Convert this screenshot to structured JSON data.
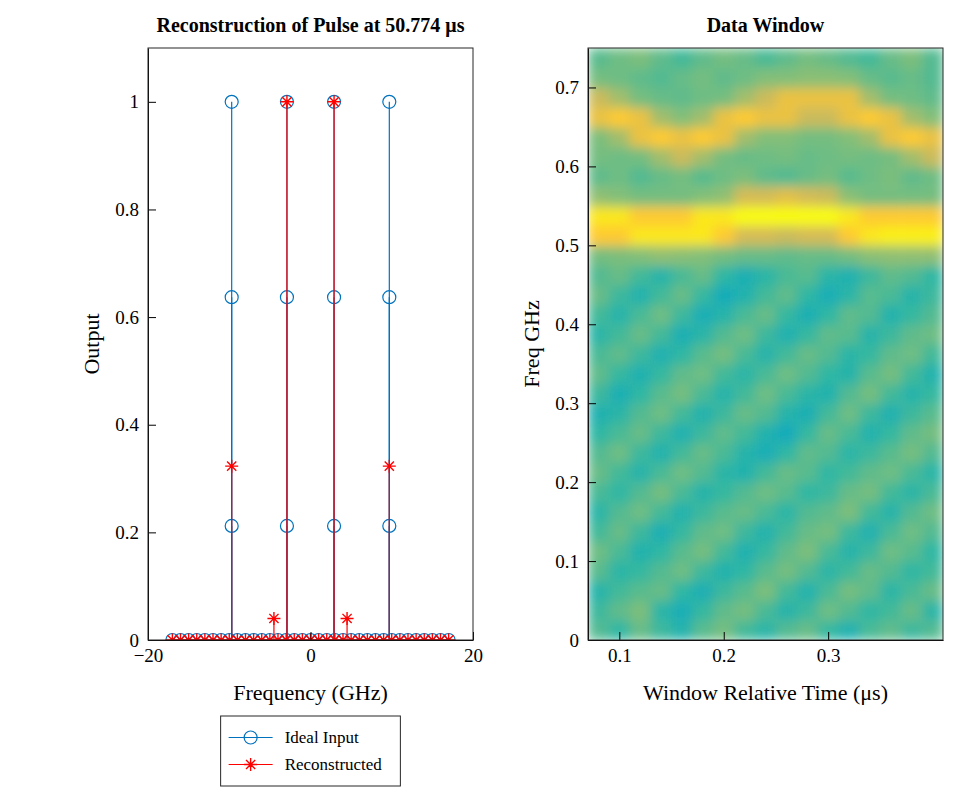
{
  "chart_data": [
    {
      "type": "stem",
      "title": "Reconstruction of Pulse at 50.774 μs",
      "x_label": "Frequency (GHz)",
      "y_label": "Output",
      "xlim": [
        -20,
        20
      ],
      "ylim": [
        0,
        1.1
      ],
      "xticks": [
        {
          "value": -20,
          "label": "−20"
        },
        0,
        20
      ],
      "yticks": [
        0,
        0.2,
        0.4,
        0.6,
        0.8,
        1
      ],
      "legend": "bottom",
      "series": [
        {
          "name": "Ideal Input",
          "color": "#0072bd",
          "marker": "circle",
          "x": [
            -17,
            -16,
            -15,
            -14,
            -13,
            -12,
            -11,
            -10,
            -9,
            -8,
            -7,
            -6,
            -5,
            -4,
            -3,
            -2,
            -1,
            0,
            1,
            2,
            3,
            4,
            5,
            6,
            7,
            8,
            9,
            10,
            11,
            12,
            13,
            14,
            15,
            16,
            17,
            -9.7,
            -9.7,
            -9.7,
            -2.9,
            -2.9,
            -2.9,
            2.9,
            2.9,
            2.9,
            9.7,
            9.7,
            9.7
          ],
          "values": [
            0,
            0,
            0,
            0,
            0,
            0,
            0,
            0,
            0,
            0,
            0,
            0,
            0,
            0,
            0,
            0,
            0,
            0,
            0,
            0,
            0,
            0,
            0,
            0,
            0,
            0,
            0,
            0,
            0,
            0,
            0,
            0,
            0,
            0,
            0,
            1,
            0.637,
            0.212,
            1,
            0.637,
            0.212,
            1,
            0.637,
            0.212,
            1,
            0.637,
            0.212
          ]
        },
        {
          "name": "Reconstructed",
          "color": "#ff0000",
          "marker": "asterisk",
          "x": [
            -17,
            -16,
            -15,
            -14,
            -13,
            -12,
            -11,
            -10,
            -9,
            -8,
            -7,
            -6,
            -5,
            -4,
            -3,
            -2,
            -1,
            0,
            1,
            2,
            3,
            4,
            5,
            6,
            7,
            8,
            9,
            10,
            11,
            12,
            13,
            14,
            15,
            16,
            17,
            -9.7,
            -4.5,
            -2.9,
            2.9,
            4.5,
            9.7
          ],
          "values": [
            0,
            0,
            0,
            0,
            0,
            0,
            0,
            0,
            0,
            0,
            0,
            0,
            0,
            0,
            0,
            0,
            0,
            0,
            0,
            0,
            0,
            0,
            0,
            0,
            0,
            0,
            0,
            0,
            0,
            0,
            0,
            0,
            0,
            0,
            0,
            0.323,
            0.04,
            1,
            1,
            0.04,
            0.323
          ]
        }
      ]
    },
    {
      "type": "heatmap",
      "title": "Data Window",
      "x_label": "Window Relative Time (μs)",
      "y_label": "Freq GHz",
      "xlim": [
        0.07,
        0.41
      ],
      "ylim": [
        0,
        0.75
      ],
      "xticks": [
        0.1,
        0.2,
        0.3
      ],
      "yticks": [
        0,
        0.1,
        0.2,
        0.3,
        0.4,
        0.5,
        0.6,
        0.7
      ],
      "zlim": [
        0,
        1
      ],
      "x": [
        0.08,
        0.1,
        0.12,
        0.14,
        0.16,
        0.18,
        0.2,
        0.22,
        0.24,
        0.26,
        0.28,
        0.3,
        0.32,
        0.34,
        0.36,
        0.38,
        0.4
      ],
      "y": [
        0.0125,
        0.0375,
        0.0625,
        0.0875,
        0.1125,
        0.1375,
        0.1625,
        0.1875,
        0.2125,
        0.2375,
        0.2625,
        0.2875,
        0.3125,
        0.3375,
        0.3625,
        0.3875,
        0.4125,
        0.4375,
        0.4625,
        0.4875,
        0.5125,
        0.5375,
        0.5625,
        0.5875,
        0.6125,
        0.6375,
        0.6625,
        0.6875,
        0.7125,
        0.7375
      ],
      "z": [
        [
          0.55,
          0.5,
          0.58,
          0.52,
          0.47,
          0.56,
          0.6,
          0.53,
          0.49,
          0.55,
          0.58,
          0.51,
          0.46,
          0.54,
          0.57,
          0.52,
          0.55
        ],
        [
          0.52,
          0.57,
          0.61,
          0.49,
          0.44,
          0.51,
          0.57,
          0.6,
          0.54,
          0.48,
          0.52,
          0.59,
          0.55,
          0.5,
          0.53,
          0.58,
          0.49
        ],
        [
          0.48,
          0.53,
          0.56,
          0.58,
          0.5,
          0.45,
          0.52,
          0.56,
          0.61,
          0.53,
          0.47,
          0.54,
          0.6,
          0.57,
          0.49,
          0.54,
          0.58
        ],
        [
          0.56,
          0.49,
          0.51,
          0.55,
          0.59,
          0.52,
          0.47,
          0.5,
          0.56,
          0.6,
          0.55,
          0.49,
          0.53,
          0.58,
          0.55,
          0.5,
          0.53
        ],
        [
          0.59,
          0.54,
          0.47,
          0.5,
          0.56,
          0.6,
          0.53,
          0.46,
          0.51,
          0.57,
          0.61,
          0.54,
          0.48,
          0.52,
          0.59,
          0.56,
          0.5
        ],
        [
          0.53,
          0.58,
          0.52,
          0.45,
          0.51,
          0.57,
          0.59,
          0.52,
          0.47,
          0.53,
          0.58,
          0.6,
          0.52,
          0.46,
          0.54,
          0.59,
          0.55
        ],
        [
          0.49,
          0.55,
          0.59,
          0.53,
          0.47,
          0.52,
          0.56,
          0.58,
          0.54,
          0.49,
          0.55,
          0.57,
          0.61,
          0.53,
          0.48,
          0.55,
          0.59
        ],
        [
          0.54,
          0.5,
          0.55,
          0.6,
          0.54,
          0.48,
          0.51,
          0.55,
          0.59,
          0.56,
          0.5,
          0.52,
          0.58,
          0.6,
          0.53,
          0.49,
          0.54
        ],
        [
          0.58,
          0.53,
          0.48,
          0.54,
          0.59,
          0.55,
          0.49,
          0.47,
          0.53,
          0.58,
          0.56,
          0.5,
          0.53,
          0.57,
          0.59,
          0.54,
          0.49
        ],
        [
          0.55,
          0.59,
          0.52,
          0.47,
          0.53,
          0.58,
          0.54,
          0.48,
          0.44,
          0.5,
          0.57,
          0.55,
          0.49,
          0.52,
          0.56,
          0.6,
          0.55
        ],
        [
          0.5,
          0.54,
          0.58,
          0.52,
          0.46,
          0.52,
          0.57,
          0.53,
          0.47,
          0.42,
          0.51,
          0.58,
          0.54,
          0.47,
          0.51,
          0.57,
          0.6
        ],
        [
          0.46,
          0.49,
          0.55,
          0.59,
          0.53,
          0.47,
          0.52,
          0.58,
          0.55,
          0.48,
          0.45,
          0.53,
          0.59,
          0.52,
          0.46,
          0.52,
          0.56
        ],
        [
          0.52,
          0.45,
          0.5,
          0.56,
          0.6,
          0.54,
          0.48,
          0.53,
          0.59,
          0.54,
          0.49,
          0.47,
          0.55,
          0.6,
          0.53,
          0.48,
          0.51
        ],
        [
          0.57,
          0.51,
          0.46,
          0.51,
          0.57,
          0.59,
          0.53,
          0.49,
          0.54,
          0.59,
          0.55,
          0.5,
          0.48,
          0.56,
          0.6,
          0.53,
          0.47
        ],
        [
          0.54,
          0.57,
          0.52,
          0.46,
          0.5,
          0.56,
          0.6,
          0.54,
          0.48,
          0.53,
          0.58,
          0.55,
          0.49,
          0.51,
          0.57,
          0.59,
          0.53
        ],
        [
          0.49,
          0.53,
          0.58,
          0.53,
          0.45,
          0.49,
          0.55,
          0.59,
          0.52,
          0.46,
          0.51,
          0.57,
          0.56,
          0.48,
          0.52,
          0.57,
          0.59
        ],
        [
          0.53,
          0.48,
          0.54,
          0.59,
          0.52,
          0.44,
          0.48,
          0.54,
          0.58,
          0.51,
          0.45,
          0.5,
          0.57,
          0.55,
          0.47,
          0.51,
          0.55
        ],
        [
          0.58,
          0.52,
          0.47,
          0.53,
          0.58,
          0.51,
          0.43,
          0.47,
          0.53,
          0.57,
          0.5,
          0.44,
          0.49,
          0.56,
          0.54,
          0.48,
          0.52
        ],
        [
          0.55,
          0.58,
          0.53,
          0.48,
          0.54,
          0.58,
          0.5,
          0.45,
          0.49,
          0.54,
          0.56,
          0.49,
          0.46,
          0.52,
          0.57,
          0.55,
          0.5
        ],
        [
          0.6,
          0.61,
          0.62,
          0.64,
          0.63,
          0.62,
          0.6,
          0.58,
          0.58,
          0.57,
          0.58,
          0.58,
          0.6,
          0.63,
          0.64,
          0.64,
          0.64
        ],
        [
          0.88,
          0.88,
          0.95,
          0.95,
          0.95,
          0.95,
          0.88,
          0.76,
          0.76,
          0.74,
          0.76,
          0.76,
          0.88,
          0.95,
          0.97,
          0.97,
          0.97
        ],
        [
          0.95,
          0.95,
          0.88,
          0.88,
          0.88,
          0.95,
          0.95,
          1.0,
          1.0,
          1.0,
          1.0,
          1.0,
          0.95,
          0.88,
          0.88,
          0.88,
          0.88
        ],
        [
          0.64,
          0.62,
          0.6,
          0.6,
          0.6,
          0.62,
          0.64,
          0.76,
          0.76,
          0.8,
          0.76,
          0.74,
          0.63,
          0.6,
          0.6,
          0.6,
          0.6
        ],
        [
          0.57,
          0.59,
          0.55,
          0.58,
          0.6,
          0.56,
          0.59,
          0.61,
          0.57,
          0.55,
          0.58,
          0.6,
          0.56,
          0.59,
          0.61,
          0.57,
          0.59
        ],
        [
          0.6,
          0.59,
          0.6,
          0.67,
          0.74,
          0.67,
          0.6,
          0.58,
          0.59,
          0.6,
          0.58,
          0.59,
          0.6,
          0.59,
          0.6,
          0.67,
          0.74
        ],
        [
          0.61,
          0.67,
          0.82,
          0.88,
          0.82,
          0.88,
          0.82,
          0.67,
          0.62,
          0.62,
          0.6,
          0.6,
          0.62,
          0.67,
          0.82,
          0.88,
          0.82
        ],
        [
          0.82,
          0.88,
          0.82,
          0.67,
          0.62,
          0.67,
          0.82,
          0.88,
          0.82,
          0.82,
          0.74,
          0.74,
          0.82,
          0.88,
          0.82,
          0.67,
          0.62
        ],
        [
          0.74,
          0.67,
          0.6,
          0.58,
          0.57,
          0.59,
          0.6,
          0.67,
          0.74,
          0.82,
          0.82,
          0.82,
          0.82,
          0.67,
          0.6,
          0.59,
          0.57
        ],
        [
          0.6,
          0.59,
          0.57,
          0.55,
          0.58,
          0.6,
          0.57,
          0.59,
          0.62,
          0.62,
          0.63,
          0.63,
          0.62,
          0.58,
          0.56,
          0.58,
          0.55
        ],
        [
          0.56,
          0.59,
          0.61,
          0.57,
          0.53,
          0.57,
          0.6,
          0.58,
          0.54,
          0.57,
          0.6,
          0.58,
          0.55,
          0.53,
          0.58,
          0.61,
          0.55
        ]
      ]
    }
  ]
}
